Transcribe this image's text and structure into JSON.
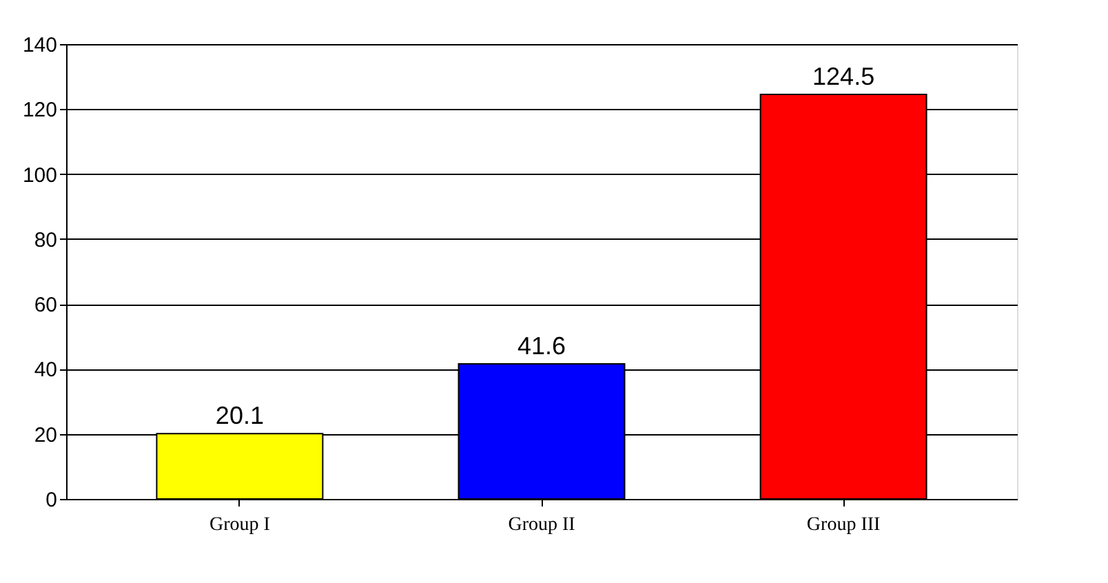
{
  "chart_data": {
    "type": "bar",
    "categories": [
      "Group I",
      "Group II",
      "Group III"
    ],
    "values": [
      20.1,
      41.6,
      124.5
    ],
    "colors": [
      "#ffff00",
      "#0000ff",
      "#ff0000"
    ],
    "ylim": [
      0,
      140
    ],
    "yticks": [
      0,
      20,
      40,
      60,
      80,
      100,
      120,
      140
    ],
    "grid": "y",
    "data_labels": true,
    "legend": false
  }
}
